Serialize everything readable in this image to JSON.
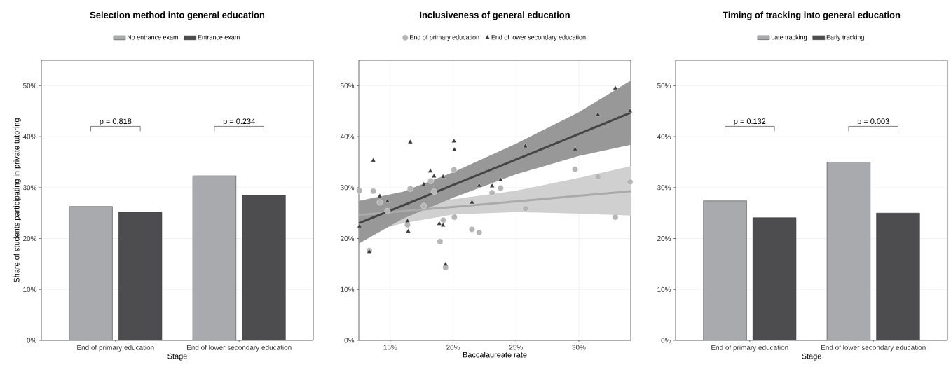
{
  "chart_data": [
    {
      "type": "bar",
      "title": "Selection method into general education",
      "xlabel": "Stage",
      "ylabel": "Share of students participating in private tutoring",
      "categories": [
        "End of primary education",
        "End of lower secondary education"
      ],
      "series": [
        {
          "name": "No entrance exam",
          "color": "#a9aaad",
          "values": [
            26.3,
            32.3
          ]
        },
        {
          "name": "Entrance exam",
          "color": "#4d4d4f",
          "values": [
            25.2,
            28.5
          ]
        }
      ],
      "ylim": [
        0,
        55
      ],
      "yticks": [
        {
          "value": 0,
          "label": "0%"
        },
        {
          "value": 10,
          "label": "10%"
        },
        {
          "value": 20,
          "label": "20%"
        },
        {
          "value": 30,
          "label": "30%"
        },
        {
          "value": 40,
          "label": "40%"
        },
        {
          "value": 50,
          "label": "50%"
        }
      ],
      "grid": "y",
      "legend": "top",
      "annotations": [
        "p = 0.818",
        "p = 0.234"
      ]
    },
    {
      "type": "scatter",
      "title": "Inclusiveness of general education",
      "xlabel": "Baccalaureate rate",
      "xlim": [
        12.5,
        34.13
      ],
      "xticks": [
        {
          "value": 15,
          "label": "15%"
        },
        {
          "value": 20,
          "label": "20%"
        },
        {
          "value": 25,
          "label": "25%"
        },
        {
          "value": 30,
          "label": "30%"
        }
      ],
      "ylim": [
        0,
        55
      ],
      "yticks": [
        {
          "value": 0,
          "label": "0%"
        },
        {
          "value": 10,
          "label": "10%"
        },
        {
          "value": 20,
          "label": "20%"
        },
        {
          "value": 30,
          "label": "30%"
        },
        {
          "value": 40,
          "label": "40%"
        },
        {
          "value": 50,
          "label": "50%"
        }
      ],
      "grid": true,
      "legend": "top",
      "series": [
        {
          "type": "line",
          "color": "#aaaaaa",
          "x": [
            12.5,
            16,
            20,
            25,
            30,
            34.13
          ],
          "values": [
            24.6,
            25.4,
            26.2,
            27.3,
            28.4,
            29.3
          ],
          "lower": [
            20.8,
            23.0,
            24.7,
            25.2,
            24.9,
            24.5
          ],
          "upper": [
            27.4,
            27.3,
            27.7,
            29.4,
            31.9,
            34.2
          ]
        },
        {
          "type": "line",
          "color": "#444444",
          "x": [
            12.5,
            16,
            20,
            25,
            30,
            34.13
          ],
          "values": [
            23.0,
            26.5,
            30.5,
            35.5,
            40.5,
            44.7
          ],
          "lower": [
            19.0,
            23.9,
            28.0,
            32.6,
            36.2,
            38.4
          ],
          "upper": [
            27.4,
            29.2,
            33.0,
            38.6,
            44.8,
            51.0
          ]
        },
        {
          "name": "End of primary education",
          "type": "scatter",
          "marker": "circle",
          "color": "#b5b5b5",
          "x": [
            12.55,
            13.33,
            13.65,
            14.17,
            14.78,
            16.37,
            16.59,
            17.67,
            18.22,
            18.48,
            18.96,
            19.22,
            19.4,
            20.07,
            20.1,
            21.5,
            22.07,
            23.1,
            23.78,
            25.74,
            29.7,
            31.52,
            32.9,
            34.07
          ],
          "values": [
            29.4,
            17.6,
            29.3,
            27.1,
            25.4,
            22.7,
            29.8,
            26.4,
            31.3,
            29.2,
            19.4,
            23.6,
            14.3,
            33.5,
            24.2,
            21.8,
            21.2,
            29.0,
            29.9,
            25.9,
            33.6,
            32.1,
            24.2,
            31.1
          ]
        },
        {
          "name": "End of lower secondary education",
          "type": "scatter",
          "marker": "triangle",
          "color": "#3a3a3a",
          "x": [
            12.56,
            13.33,
            13.65,
            14.17,
            14.78,
            16.37,
            16.43,
            16.59,
            17.67,
            18.19,
            18.48,
            19.2,
            18.9,
            19.2,
            19.4,
            20.07,
            20.1,
            21.5,
            22.07,
            23.1,
            23.78,
            25.74,
            29.7,
            31.52,
            32.9,
            34.07
          ],
          "values": [
            22.4,
            17.4,
            35.3,
            28.3,
            27.3,
            23.4,
            21.4,
            38.9,
            30.6,
            33.2,
            32.2,
            32.1,
            22.9,
            22.6,
            14.9,
            39.1,
            37.4,
            27.1,
            30.4,
            30.3,
            31.5,
            38.1,
            37.5,
            44.3,
            49.5,
            45.0
          ]
        }
      ]
    },
    {
      "type": "bar",
      "title": "Timing of tracking into general education",
      "xlabel": "Stage",
      "categories": [
        "End of primary education",
        "End of lower secondary education"
      ],
      "series": [
        {
          "name": "Late tracking",
          "color": "#a9aaad",
          "values": [
            27.4,
            35.0
          ]
        },
        {
          "name": "Early tracking",
          "color": "#4d4d4f",
          "values": [
            24.1,
            25.0
          ]
        }
      ],
      "ylim": [
        0,
        55
      ],
      "yticks": [
        {
          "value": 0,
          "label": "0%"
        },
        {
          "value": 10,
          "label": "10%"
        },
        {
          "value": 20,
          "label": "20%"
        },
        {
          "value": 30,
          "label": "30%"
        },
        {
          "value": 40,
          "label": "40%"
        },
        {
          "value": 50,
          "label": "50%"
        }
      ],
      "grid": "y",
      "legend": "top",
      "annotations": [
        "p = 0.132",
        "p = 0.003"
      ]
    }
  ]
}
